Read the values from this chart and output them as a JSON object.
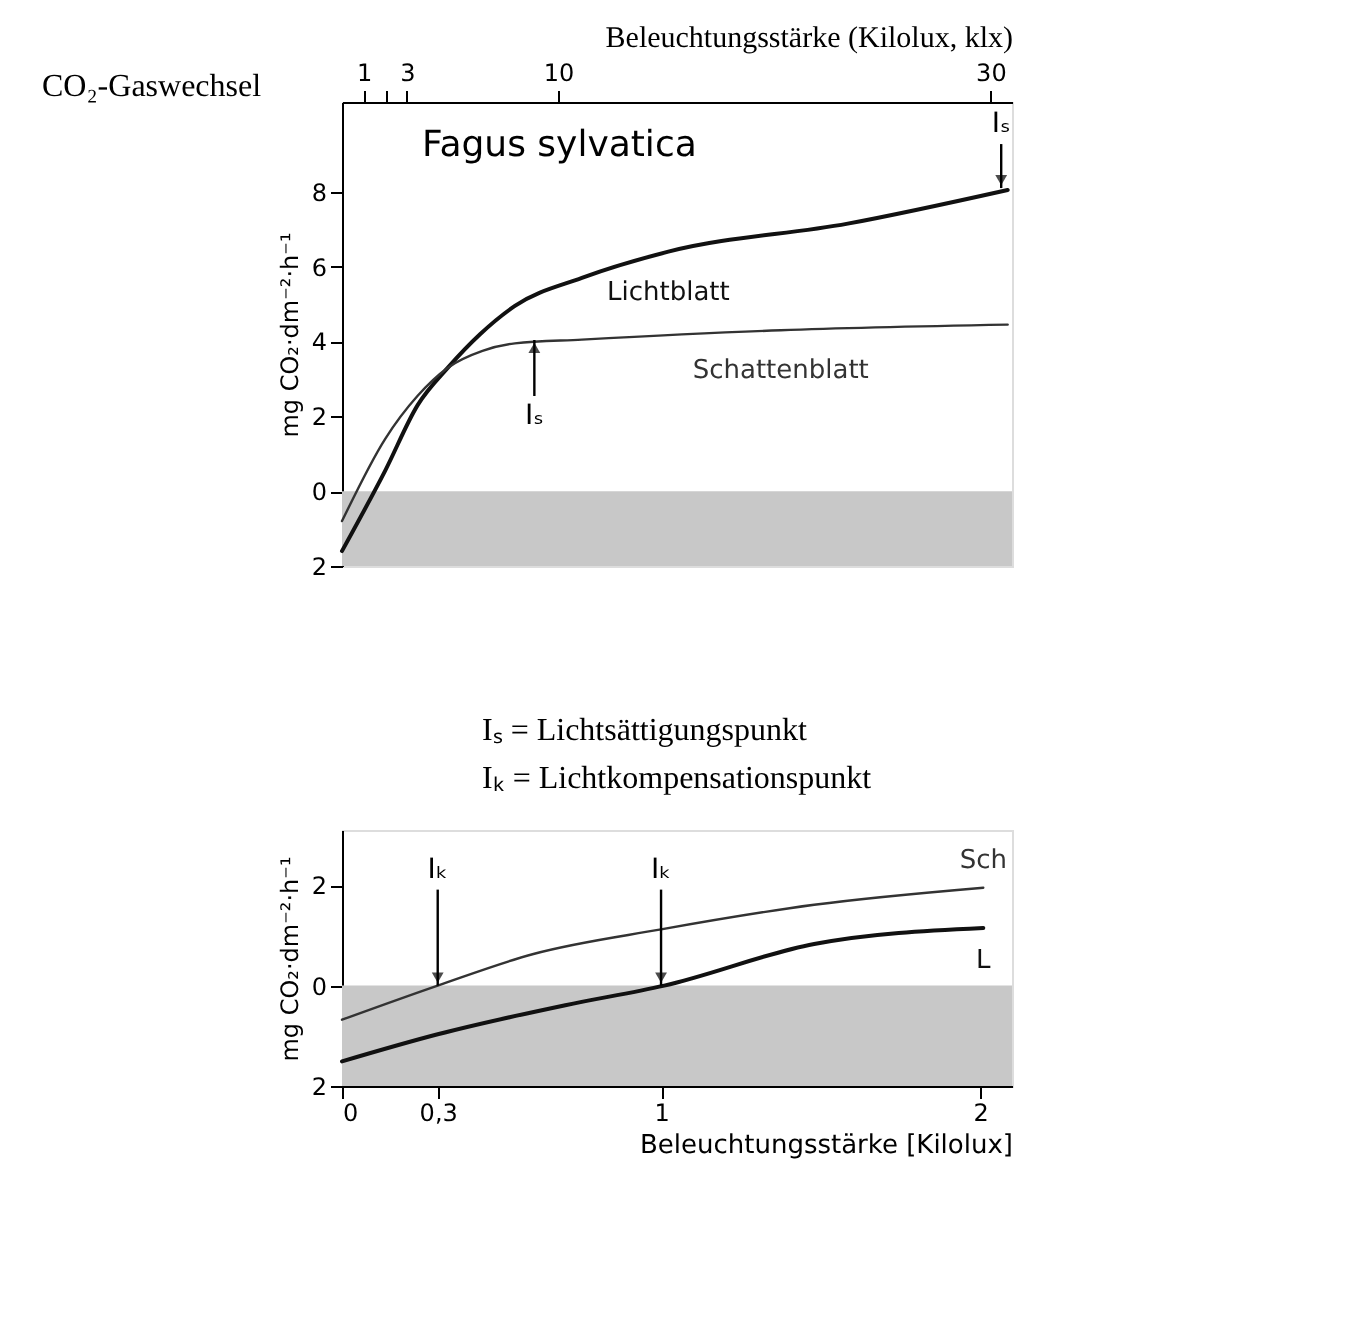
{
  "chart_data": [
    {
      "type": "line",
      "title": "Fagus sylvatica",
      "xlabel": "Beleuchtungsstärke (Kilolux, klx)",
      "ylabel": "mg CO₂·dm⁻²·h⁻¹",
      "xlim": [
        0,
        31
      ],
      "xticks": [
        1,
        {
          "value": 2,
          "label": null
        },
        3,
        10,
        30
      ],
      "ylim": [
        -2,
        10.4
      ],
      "yticks": [
        {
          "value": -2,
          "label": "2"
        },
        0,
        2,
        4,
        6,
        8
      ],
      "grid": false,
      "series": [
        {
          "name": "Lichtblatt",
          "color": "#111111",
          "x": [
            0,
            2,
            3.5,
            4.9,
            6.4,
            8,
            11.1,
            15.1,
            23.4,
            30.8
          ],
          "values": [
            -1.6,
            0.55,
            2.3,
            3.3,
            4.2,
            4.95,
            5.7,
            6.4,
            7.15,
            8.05
          ]
        },
        {
          "name": "Schattenblatt",
          "color": "#333333",
          "x": [
            0,
            2,
            3.5,
            4.9,
            6.5,
            8,
            11.1,
            20.3,
            30.8
          ],
          "values": [
            -0.8,
            1.4,
            2.55,
            3.3,
            3.75,
            3.95,
            4.05,
            4.3,
            4.45
          ]
        }
      ],
      "bands": [
        {
          "axis": "y",
          "from": -2,
          "to": 0,
          "color": "#c8c8c8"
        }
      ],
      "annotations": [
        "CO₂-Gaswechsel",
        {
          "text": "Iₛ",
          "x": 8.9,
          "y": 4.04
        },
        {
          "text": "Iₛ",
          "x": 30.5,
          "y": 8.1
        }
      ]
    },
    {
      "type": "line",
      "xlabel": "Beleuchtungsstärke [Kilolux]",
      "ylabel": "mg CO₂·dm⁻²·h⁻¹",
      "xlim": [
        0,
        2.1
      ],
      "xticks": [
        0,
        {
          "value": 0.3,
          "label": "0,3"
        },
        1,
        2
      ],
      "ylim": [
        -2,
        3.1
      ],
      "yticks": [
        {
          "value": -2,
          "label": "2"
        },
        0,
        2
      ],
      "grid": false,
      "series": [
        {
          "name": "Sch",
          "color": "#333333",
          "x": [
            0,
            0.3,
            0.6,
            1.0,
            1.48,
            2.01
          ],
          "values": [
            -0.68,
            0,
            0.63,
            1.12,
            1.61,
            1.95
          ]
        },
        {
          "name": "L",
          "color": "#111111",
          "x": [
            0,
            0.3,
            0.7,
            1.01,
            1.48,
            2.01
          ],
          "values": [
            -1.51,
            -0.97,
            -0.39,
            0,
            0.83,
            1.15
          ]
        }
      ],
      "bands": [
        {
          "axis": "y",
          "from": -2,
          "to": 0,
          "color": "#c8c8c8"
        }
      ],
      "annotations": [
        "Iₛ = Lichtsättigungspunkt",
        "Iₖ = Lichtkompensationspunkt",
        {
          "text": "Iₖ",
          "x": 0.3,
          "y": 0
        },
        {
          "text": "Iₖ",
          "x": 1,
          "y": 0
        }
      ]
    }
  ]
}
